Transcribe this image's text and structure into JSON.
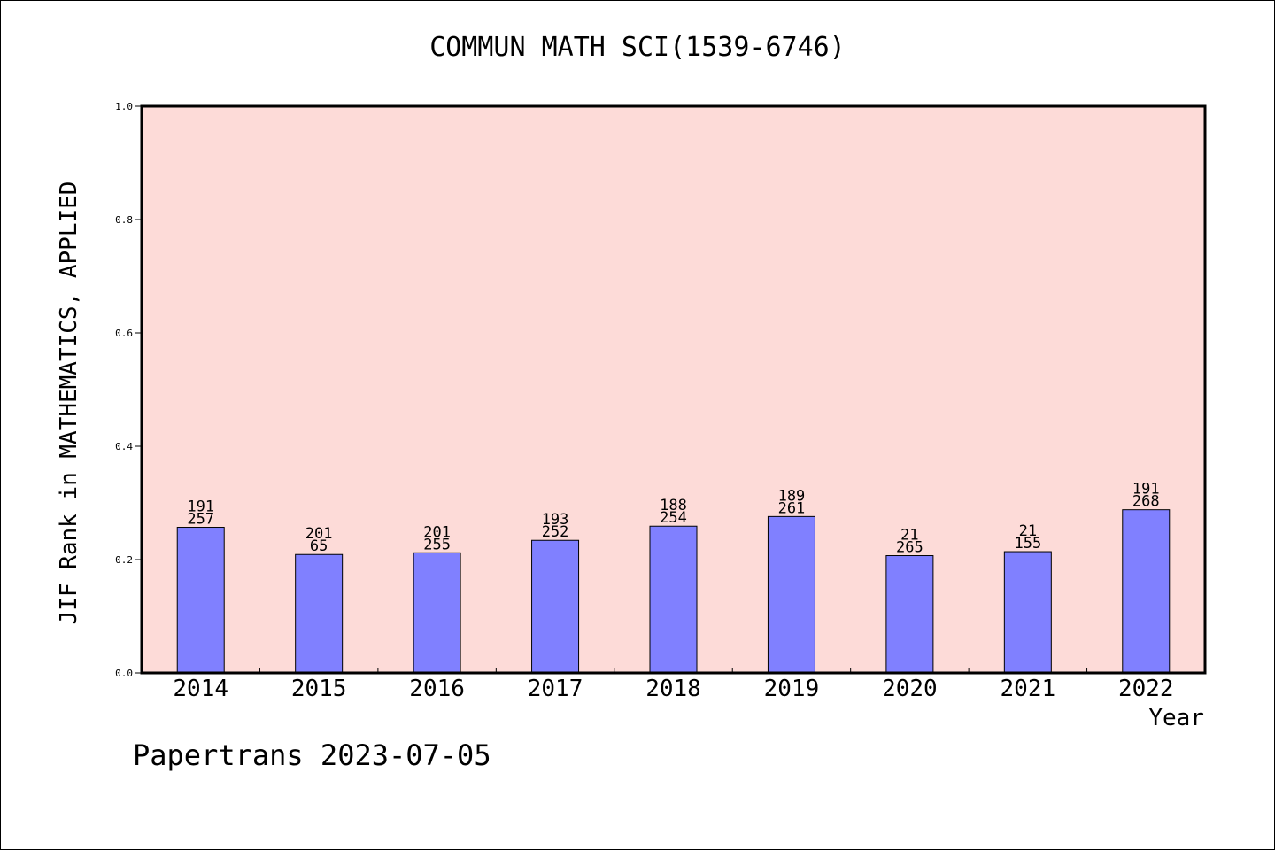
{
  "chart_data": {
    "type": "bar",
    "title": "COMMUN MATH SCI(1539-6746)",
    "xlabel": "Year",
    "ylabel": "JIF Rank in MATHEMATICS, APPLIED",
    "categories": [
      "2014",
      "2015",
      "2016",
      "2017",
      "2018",
      "2019",
      "2020",
      "2021",
      "2022"
    ],
    "values": [
      0.257,
      0.209,
      0.212,
      0.234,
      0.259,
      0.276,
      0.207,
      0.214,
      0.288
    ],
    "bar_labels_top": [
      "191",
      "201",
      "201",
      "193",
      "188",
      "189",
      "21",
      "21",
      "191"
    ],
    "bar_labels_bottom": [
      "257",
      "65",
      "255",
      "252",
      "254",
      "261",
      "265",
      "155",
      "268"
    ],
    "ylim": [
      0,
      1.0
    ],
    "yticks": [
      "0.0",
      "0.2",
      "0.4",
      "0.6",
      "0.8",
      "1.0"
    ],
    "grid": false,
    "colors": {
      "plot_background": "#fddbd8",
      "bar_fill": "#8080ff",
      "bar_stroke": "#000000"
    }
  },
  "footer": {
    "text": "Papertrans 2023-07-05"
  }
}
